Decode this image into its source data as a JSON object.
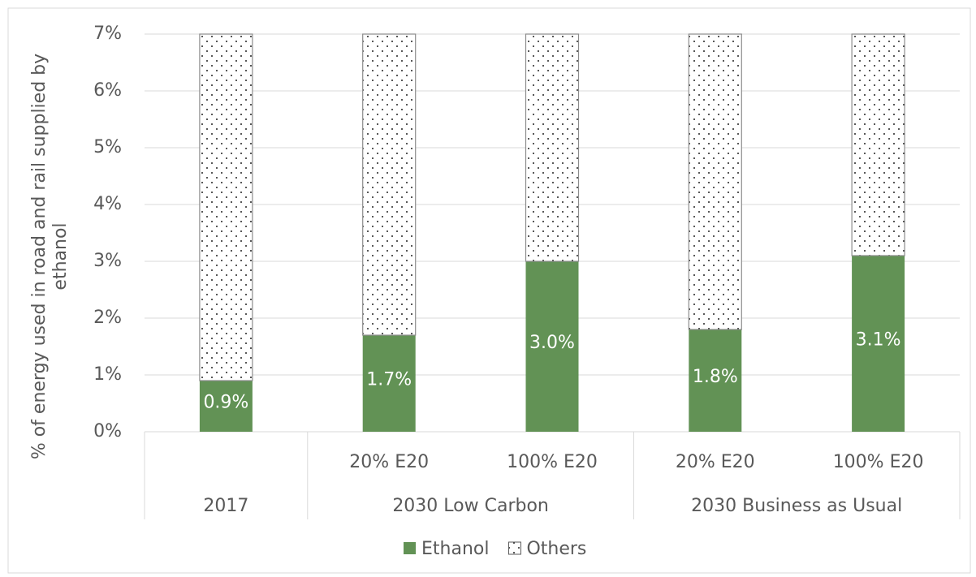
{
  "chart_data": {
    "type": "stacked_bar",
    "ylabel": "% of energy used in road and rail supplied by ethanol",
    "groups": [
      {
        "label": "2017",
        "categories": [
          null
        ]
      },
      {
        "label": "2030 Low Carbon",
        "categories": [
          "20% E20",
          "100% E20"
        ]
      },
      {
        "label": "2030 Business as Usual",
        "categories": [
          "20% E20",
          "100% E20"
        ]
      }
    ],
    "series": [
      {
        "name": "Ethanol",
        "color": "#629255",
        "values": [
          0.9,
          1.7,
          3.0,
          1.8,
          3.1
        ],
        "value_labels": [
          "0.9%",
          "1.7%",
          "3.0%",
          "1.8%",
          "3.1%"
        ]
      },
      {
        "name": "Others",
        "color": "pattern-dots",
        "values": [
          6.1,
          5.3,
          4.0,
          5.2,
          3.9
        ]
      }
    ],
    "ylim": [
      0,
      7
    ],
    "yticks": [
      {
        "value": 0,
        "label": "0%"
      },
      {
        "value": 1,
        "label": "1%"
      },
      {
        "value": 2,
        "label": "2%"
      },
      {
        "value": 3,
        "label": "3%"
      },
      {
        "value": 4,
        "label": "4%"
      },
      {
        "value": 5,
        "label": "5%"
      },
      {
        "value": 6,
        "label": "6%"
      },
      {
        "value": 7,
        "label": "7%"
      }
    ],
    "grid": true,
    "legend": "bottom"
  }
}
